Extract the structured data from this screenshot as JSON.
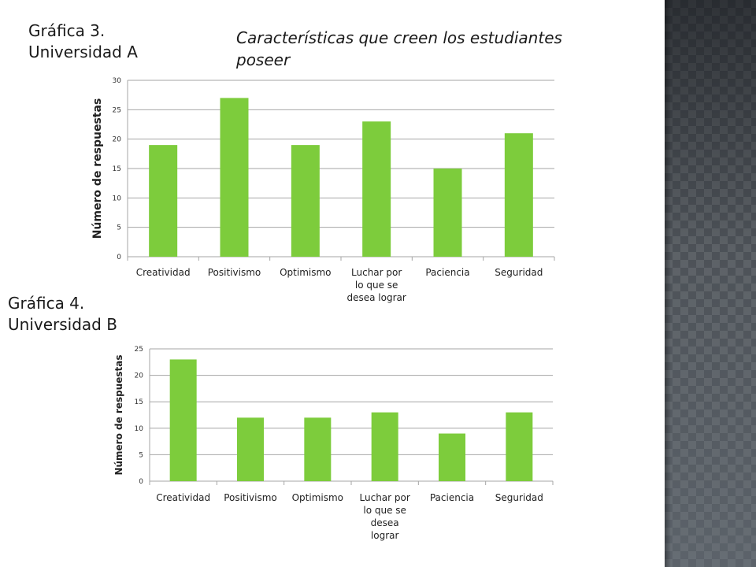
{
  "slide": {
    "label_chart3": [
      "Gráfica 3.",
      "Universidad A"
    ],
    "label_chart4": [
      "Gráfica 4.",
      "Universidad B"
    ],
    "subtitle": "Características que creen los estudiantes poseer"
  },
  "chart_data": [
    {
      "type": "bar",
      "title": "",
      "xlabel": "",
      "ylabel": "Número de respuestas",
      "categories": [
        [
          "Creatividad"
        ],
        [
          "Positivismo"
        ],
        [
          "Optimismo"
        ],
        [
          "Luchar por",
          "lo que se",
          "desea lograr"
        ],
        [
          "Paciencia"
        ],
        [
          "Seguridad"
        ]
      ],
      "values": [
        19,
        27,
        19,
        23,
        15,
        21
      ],
      "ylim": [
        0,
        30
      ],
      "yticks": [
        0,
        5,
        10,
        15,
        20,
        25,
        30
      ],
      "grid": true,
      "legend": "none",
      "bar_color": "#7dcc3c"
    },
    {
      "type": "bar",
      "title": "",
      "xlabel": "",
      "ylabel": "Número de respuestas",
      "categories": [
        [
          "Creatividad"
        ],
        [
          "Positivismo"
        ],
        [
          "Optimismo"
        ],
        [
          "Luchar por",
          "lo que se",
          "desea",
          "lograr"
        ],
        [
          "Paciencia"
        ],
        [
          "Seguridad"
        ]
      ],
      "values": [
        23,
        12,
        12,
        13,
        9,
        13
      ],
      "ylim": [
        0,
        25
      ],
      "yticks": [
        0,
        5,
        10,
        15,
        20,
        25
      ],
      "grid": true,
      "legend": "none",
      "bar_color": "#7dcc3c"
    }
  ]
}
